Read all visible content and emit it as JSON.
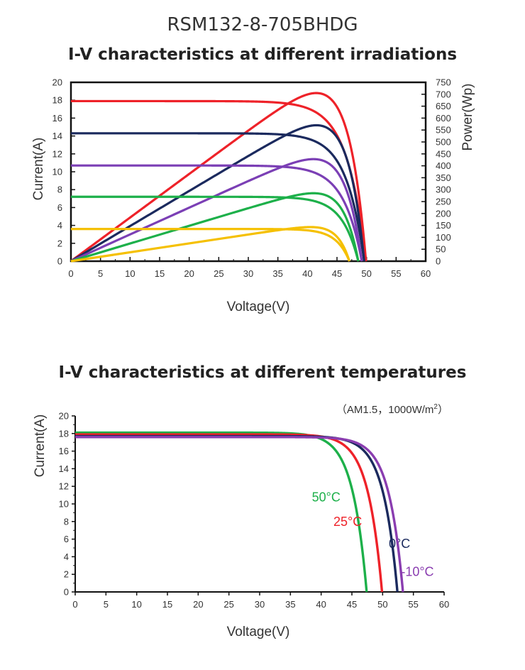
{
  "model": "RSM132-8-705BHDG",
  "chart_data": [
    {
      "type": "line",
      "title": "I-V characteristics at different irradiations",
      "xlabel": "Voltage(V)",
      "ylabel": "Current(A)",
      "y2label": "Power(Wp)",
      "xlim": [
        0,
        60
      ],
      "ylim": [
        0,
        20
      ],
      "y2lim": [
        0,
        750
      ],
      "xticks": [
        "0",
        "5",
        "10",
        "15",
        "20",
        "25",
        "30",
        "35",
        "40",
        "45",
        "50",
        "55",
        "60"
      ],
      "yticks": [
        "0",
        "2",
        "4",
        "6",
        "8",
        "10",
        "12",
        "14",
        "16",
        "18",
        "20"
      ],
      "y2ticks": [
        "0",
        "50",
        "100",
        "150",
        "200",
        "250",
        "300",
        "350",
        "400",
        "450",
        "500",
        "550",
        "600",
        "650",
        "700",
        "750"
      ],
      "grid": false,
      "series": [
        {
          "color": "#ee2229",
          "isc": 17.9,
          "voc": 49.9,
          "pmax": 705,
          "vmp": 41.5
        },
        {
          "color": "#1b2a5e",
          "isc": 14.3,
          "voc": 49.6,
          "pmax": 570,
          "vmp": 41.5
        },
        {
          "color": "#7b3fb5",
          "isc": 10.7,
          "voc": 49.2,
          "pmax": 428,
          "vmp": 41.0
        },
        {
          "color": "#1db04a",
          "isc": 7.2,
          "voc": 48.6,
          "pmax": 285,
          "vmp": 41.0
        },
        {
          "color": "#f5c000",
          "isc": 3.6,
          "voc": 47.1,
          "pmax": 143,
          "vmp": 40.5
        }
      ]
    },
    {
      "type": "line",
      "title": "I-V characteristics at different temperatures",
      "annotation": "（AM1.5，1000W/m",
      "annotation_sup": "2",
      "annotation_close": "）",
      "xlabel": "Voltage(V)",
      "ylabel": "Current(A)",
      "xlim": [
        0,
        60
      ],
      "ylim": [
        0,
        20
      ],
      "xticks": [
        "0",
        "5",
        "10",
        "15",
        "20",
        "25",
        "30",
        "35",
        "40",
        "45",
        "50",
        "55",
        "60"
      ],
      "yticks": [
        "0",
        "2",
        "4",
        "6",
        "8",
        "10",
        "12",
        "14",
        "16",
        "18",
        "20"
      ],
      "grid": false,
      "series": [
        {
          "name": "50°C",
          "color": "#1db04a",
          "isc": 18.1,
          "voc": 47.4,
          "label_pos": [
            38.5,
            10.3
          ]
        },
        {
          "name": "25°C",
          "color": "#ee2229",
          "isc": 17.9,
          "voc": 49.9,
          "label_pos": [
            42.0,
            7.5
          ]
        },
        {
          "name": "0°C",
          "color": "#1b2a5e",
          "isc": 17.7,
          "voc": 52.4,
          "label_pos": [
            51.0,
            5.0
          ]
        },
        {
          "name": "-10°C",
          "color": "#8a3db0",
          "isc": 17.6,
          "voc": 53.3,
          "label_pos": [
            53.0,
            1.8
          ]
        }
      ]
    }
  ]
}
